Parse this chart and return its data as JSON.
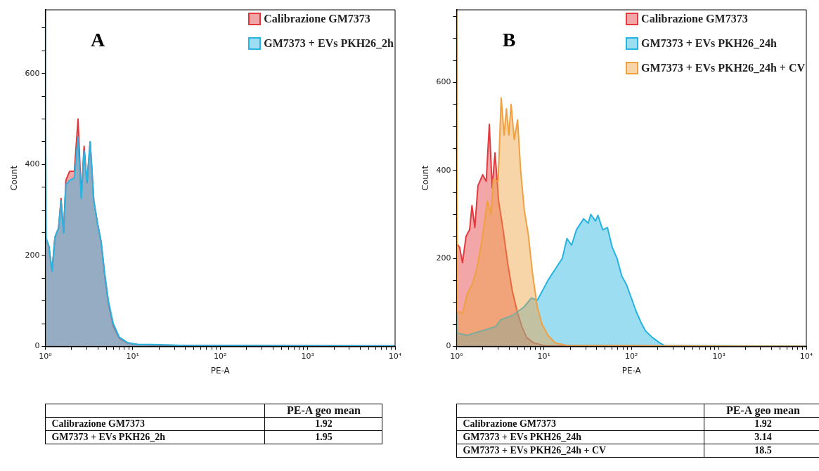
{
  "chart_data": [
    {
      "type": "area",
      "title": "A",
      "xlabel": "PE-A",
      "ylabel": "Count",
      "log": "x",
      "legend": "top right",
      "grid": false,
      "xlim": [
        1,
        10000
      ],
      "ylim": [
        0,
        740
      ],
      "xticks": [
        {
          "value": 1,
          "label": "10⁰"
        },
        {
          "value": 2,
          "label": null
        },
        {
          "value": 3,
          "label": null
        },
        {
          "value": 4,
          "label": null
        },
        {
          "value": 5,
          "label": null
        },
        {
          "value": 6,
          "label": null
        },
        {
          "value": 7,
          "label": null
        },
        {
          "value": 8,
          "label": null
        },
        {
          "value": 9,
          "label": null
        },
        {
          "value": 10,
          "label": "10¹"
        },
        {
          "value": 20,
          "label": null
        },
        {
          "value": 30,
          "label": null
        },
        {
          "value": 40,
          "label": null
        },
        {
          "value": 50,
          "label": null
        },
        {
          "value": 60,
          "label": null
        },
        {
          "value": 70,
          "label": null
        },
        {
          "value": 80,
          "label": null
        },
        {
          "value": 90,
          "label": null
        },
        {
          "value": 100,
          "label": "10²"
        },
        {
          "value": 200,
          "label": null
        },
        {
          "value": 300,
          "label": null
        },
        {
          "value": 400,
          "label": null
        },
        {
          "value": 500,
          "label": null
        },
        {
          "value": 600,
          "label": null
        },
        {
          "value": 700,
          "label": null
        },
        {
          "value": 800,
          "label": null
        },
        {
          "value": 900,
          "label": null
        },
        {
          "value": 1000,
          "label": "10³"
        },
        {
          "value": 2000,
          "label": null
        },
        {
          "value": 3000,
          "label": null
        },
        {
          "value": 4000,
          "label": null
        },
        {
          "value": 5000,
          "label": null
        },
        {
          "value": 6000,
          "label": null
        },
        {
          "value": 7000,
          "label": null
        },
        {
          "value": 8000,
          "label": null
        },
        {
          "value": 9000,
          "label": null
        },
        {
          "value": 10000,
          "label": "10⁴"
        }
      ],
      "yticks": [
        0,
        {
          "value": 50,
          "label": null
        },
        {
          "value": 100,
          "label": null
        },
        {
          "value": 150,
          "label": null
        },
        200,
        {
          "value": 250,
          "label": null
        },
        {
          "value": 300,
          "label": null
        },
        {
          "value": 350,
          "label": null
        },
        400,
        {
          "value": 450,
          "label": null
        },
        {
          "value": 500,
          "label": null
        },
        {
          "value": 550,
          "label": null
        },
        600,
        {
          "value": 650,
          "label": null
        },
        {
          "value": 700,
          "label": null
        }
      ],
      "series": [
        {
          "name": "Calibrazione GM7373",
          "color": "#e0383c",
          "x": [
            1,
            1.026,
            1.1,
            1.196,
            1.29,
            1.42,
            1.515,
            1.62,
            1.72,
            1.9,
            2.15,
            2.37,
            2.58,
            2.78,
            3,
            3.26,
            3.59,
            3.96,
            4.35,
            4.79,
            5.27,
            5.99,
            7.03,
            8.8,
            11.4,
            16.7,
            35.9,
            10000
          ],
          "values": [
            235,
            235,
            220,
            165,
            240,
            260,
            325,
            250,
            365,
            385,
            385,
            500,
            330,
            440,
            360,
            450,
            320,
            270,
            230,
            155,
            95,
            45,
            18,
            7,
            4,
            3,
            2,
            1
          ]
        },
        {
          "name": "GM7373 + EVs PKH26_2h",
          "color": "#27b5e4",
          "x": [
            1,
            1.026,
            1.1,
            1.196,
            1.29,
            1.42,
            1.515,
            1.62,
            1.72,
            1.9,
            2.15,
            2.37,
            2.58,
            2.78,
            3,
            3.26,
            3.59,
            3.96,
            4.35,
            4.79,
            5.27,
            5.99,
            7.03,
            8.8,
            11.4,
            16.7,
            35.9,
            10000
          ],
          "values": [
            712,
            238,
            220,
            165,
            240,
            260,
            320,
            250,
            355,
            365,
            370,
            460,
            325,
            430,
            360,
            450,
            320,
            270,
            230,
            160,
            100,
            50,
            20,
            8,
            4,
            4,
            2,
            1
          ]
        }
      ],
      "annotations": [
        "PE-A geo mean",
        "Calibrazione GM7373",
        "1.92",
        "GM7373 + EVs PKH26_2h",
        "1.95"
      ]
    },
    {
      "type": "area",
      "title": "B",
      "xlabel": "PE-A",
      "ylabel": "Count",
      "log": "x",
      "legend": "top right",
      "grid": false,
      "xlim": [
        1,
        10000
      ],
      "ylim": [
        0,
        765
      ],
      "xticks": [
        {
          "value": 1,
          "label": "10⁰"
        },
        {
          "value": 2,
          "label": null
        },
        {
          "value": 3,
          "label": null
        },
        {
          "value": 4,
          "label": null
        },
        {
          "value": 5,
          "label": null
        },
        {
          "value": 6,
          "label": null
        },
        {
          "value": 7,
          "label": null
        },
        {
          "value": 8,
          "label": null
        },
        {
          "value": 9,
          "label": null
        },
        {
          "value": 10,
          "label": "10¹"
        },
        {
          "value": 20,
          "label": null
        },
        {
          "value": 30,
          "label": null
        },
        {
          "value": 40,
          "label": null
        },
        {
          "value": 50,
          "label": null
        },
        {
          "value": 60,
          "label": null
        },
        {
          "value": 70,
          "label": null
        },
        {
          "value": 80,
          "label": null
        },
        {
          "value": 90,
          "label": null
        },
        {
          "value": 100,
          "label": "10²"
        },
        {
          "value": 200,
          "label": null
        },
        {
          "value": 300,
          "label": null
        },
        {
          "value": 400,
          "label": null
        },
        {
          "value": 500,
          "label": null
        },
        {
          "value": 600,
          "label": null
        },
        {
          "value": 700,
          "label": null
        },
        {
          "value": 800,
          "label": null
        },
        {
          "value": 900,
          "label": null
        },
        {
          "value": 1000,
          "label": "10³"
        },
        {
          "value": 2000,
          "label": null
        },
        {
          "value": 3000,
          "label": null
        },
        {
          "value": 4000,
          "label": null
        },
        {
          "value": 5000,
          "label": null
        },
        {
          "value": 6000,
          "label": null
        },
        {
          "value": 7000,
          "label": null
        },
        {
          "value": 8000,
          "label": null
        },
        {
          "value": 9000,
          "label": null
        },
        {
          "value": 10000,
          "label": "10⁴"
        }
      ],
      "yticks": [
        0,
        {
          "value": 50,
          "label": null
        },
        {
          "value": 100,
          "label": null
        },
        {
          "value": 150,
          "label": null
        },
        200,
        {
          "value": 250,
          "label": null
        },
        {
          "value": 300,
          "label": null
        },
        {
          "value": 350,
          "label": null
        },
        400,
        {
          "value": 450,
          "label": null
        },
        {
          "value": 500,
          "label": null
        },
        {
          "value": 550,
          "label": null
        },
        600,
        {
          "value": 650,
          "label": null
        },
        {
          "value": 700,
          "label": null
        },
        {
          "value": 750,
          "label": null
        }
      ],
      "series": [
        {
          "name": "Calibrazione GM7373",
          "color": "#e23a3e",
          "x": [
            1,
            1.019,
            1.085,
            1.169,
            1.284,
            1.411,
            1.502,
            1.619,
            1.757,
            1.991,
            2.185,
            2.37,
            2.556,
            2.755,
            3.03,
            3.38,
            3.84,
            4.35,
            4.93,
            5.58,
            6.33,
            7.63,
            9.83,
            10000
          ],
          "values": [
            232,
            232,
            225,
            190,
            250,
            265,
            320,
            270,
            365,
            390,
            375,
            505,
            360,
            440,
            330,
            270,
            190,
            125,
            80,
            45,
            20,
            8,
            2,
            0
          ]
        },
        {
          "name": "GM7373 + EVs PKH26_24h",
          "color": "#25b4e2",
          "x": [
            1,
            1.019,
            1.325,
            1.928,
            2.806,
            3.18,
            4.35,
            5.95,
            7.18,
            8.4,
            9.23,
            11.1,
            13.4,
            16.2,
            18.3,
            20.7,
            23.5,
            28.4,
            32.1,
            34.2,
            38.8,
            41.4,
            46.9,
            53.2,
            60.3,
            68.4,
            77.5,
            87.9,
            99.7,
            113,
            128,
            145,
            174,
            210,
            238,
            10000
          ],
          "values": [
            80,
            30,
            25,
            35,
            45,
            60,
            70,
            90,
            110,
            105,
            120,
            150,
            175,
            200,
            245,
            230,
            265,
            290,
            280,
            300,
            285,
            298,
            265,
            270,
            225,
            200,
            160,
            140,
            110,
            80,
            55,
            35,
            20,
            8,
            2,
            0
          ]
        },
        {
          "name": "GM7373 + EVs PKH26_24h + CV",
          "color": "#f0a040",
          "x": [
            1,
            1.019,
            1.169,
            1.325,
            1.502,
            1.701,
            1.928,
            2.255,
            2.479,
            2.637,
            2.989,
            3.24,
            3.5,
            3.72,
            3.96,
            4.21,
            4.57,
            4.99,
            5.41,
            5.95,
            6.61,
            7.4,
            8.37,
            9.5,
            11.1,
            13.4,
            18.3,
            10000
          ],
          "values": [
            760,
            80,
            75,
            120,
            140,
            175,
            235,
            330,
            300,
            380,
            375,
            565,
            480,
            540,
            480,
            550,
            470,
            515,
            400,
            310,
            255,
            165,
            90,
            50,
            25,
            8,
            2,
            0
          ]
        }
      ],
      "annotations": [
        "PE-A geo mean",
        "Calibrazione GM7373",
        "1.92",
        "GM7373 + EVs PKH26_24h",
        "3.14",
        "GM7373 + EVs PKH26_24h + CV",
        "18.5"
      ]
    }
  ]
}
